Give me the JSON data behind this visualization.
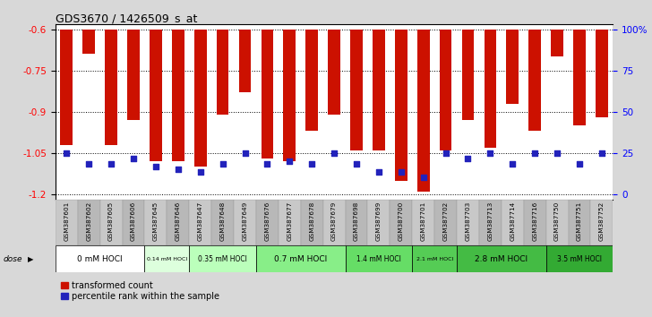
{
  "title": "GDS3670 / 1426509_s_at",
  "samples": [
    "GSM387601",
    "GSM387602",
    "GSM387605",
    "GSM387606",
    "GSM387645",
    "GSM387646",
    "GSM387647",
    "GSM387648",
    "GSM387649",
    "GSM387676",
    "GSM387677",
    "GSM387678",
    "GSM387679",
    "GSM387698",
    "GSM387699",
    "GSM387700",
    "GSM387701",
    "GSM387702",
    "GSM387703",
    "GSM387713",
    "GSM387714",
    "GSM387716",
    "GSM387750",
    "GSM387751",
    "GSM387752"
  ],
  "red_values": [
    -1.02,
    -0.69,
    -1.02,
    -0.93,
    -1.08,
    -1.08,
    -1.1,
    -0.91,
    -0.83,
    -1.07,
    -1.08,
    -0.97,
    -0.91,
    -1.04,
    -1.04,
    -1.15,
    -1.19,
    -1.04,
    -0.93,
    -1.03,
    -0.87,
    -0.97,
    -0.7,
    -0.95,
    -0.92
  ],
  "blue_values": [
    -1.05,
    -1.09,
    -1.09,
    -1.07,
    -1.1,
    -1.11,
    -1.12,
    -1.09,
    -1.05,
    -1.09,
    -1.08,
    -1.09,
    -1.05,
    -1.09,
    -1.12,
    -1.12,
    -1.14,
    -1.05,
    -1.07,
    -1.05,
    -1.09,
    -1.05,
    -1.05,
    -1.09,
    -1.05
  ],
  "ylim": [
    -1.22,
    -0.58
  ],
  "yticks_left": [
    -1.2,
    -1.05,
    -0.9,
    -0.75,
    -0.6
  ],
  "yticks_right_pct": [
    0,
    25,
    50,
    75,
    100
  ],
  "dose_groups": [
    {
      "label": "0 mM HOCl",
      "start": 0,
      "end": 4,
      "color": "#ffffff"
    },
    {
      "label": "0.14 mM HOCl",
      "start": 4,
      "end": 6,
      "color": "#ddffdd"
    },
    {
      "label": "0.35 mM HOCl",
      "start": 6,
      "end": 9,
      "color": "#bbffbb"
    },
    {
      "label": "0.7 mM HOCl",
      "start": 9,
      "end": 13,
      "color": "#88ee88"
    },
    {
      "label": "1.4 mM HOCl",
      "start": 13,
      "end": 16,
      "color": "#66dd66"
    },
    {
      "label": "2.1 mM HOCl",
      "start": 16,
      "end": 18,
      "color": "#55cc55"
    },
    {
      "label": "2.8 mM HOCl",
      "start": 18,
      "end": 22,
      "color": "#44bb44"
    },
    {
      "label": "3.5 mM HOCl",
      "start": 22,
      "end": 25,
      "color": "#33aa33"
    }
  ],
  "bar_color": "#cc1100",
  "dot_color": "#2222bb",
  "fig_bg": "#d8d8d8",
  "plot_bg": "white",
  "sample_row_colors": [
    "#c8c8c8",
    "#b8b8b8"
  ],
  "ymin": -1.2,
  "ymax": -0.6,
  "bar_width": 0.55
}
